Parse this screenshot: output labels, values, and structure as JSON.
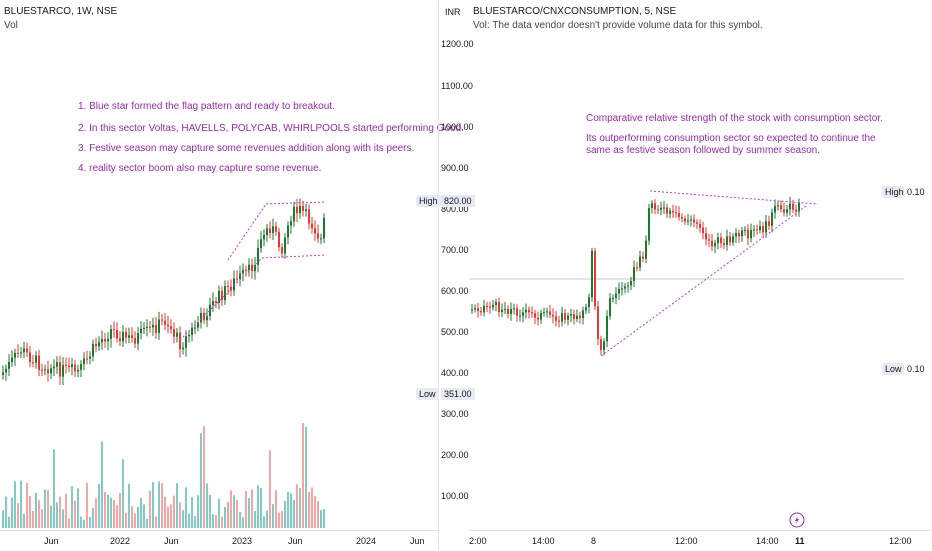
{
  "left": {
    "title": "BLUESTARCO, 1W, NSE",
    "vol_label": "Vol",
    "notes": [
      "1. Blue star formed the flag pattern and ready to breakout.",
      "2. In this sector Voltas, HAVELLS, POLYCAB, WHIRLPOOLS started performing Good.",
      "3. Festive season may capture some revenues addition along with its peers.",
      "4. reality sector boom also may capture some revenue."
    ],
    "currency": "INR",
    "price_ticks": [
      "1200.00",
      "1100.00",
      "1000.00",
      "900.00",
      "800.00",
      "700.00",
      "600.00",
      "500.00",
      "400.00",
      "300.00",
      "200.00",
      "100.00"
    ],
    "high_label": "High",
    "high_value": "820.00",
    "low_label": "Low",
    "low_value": "351.00",
    "x_ticks": [
      "Jun",
      "2022",
      "Jun",
      "2023",
      "Jun",
      "2024",
      "Jun"
    ]
  },
  "right": {
    "title": "BLUESTARCO/CNXCONSUMPTION, 5, NSE",
    "vol_note": "Vol: The data vendor doesn't provide volume data for this symbol.",
    "notes": [
      "Comparative relative strength of the stock with consumption sector.",
      "Its outperforming consumption sector so expected to continue the",
      "same as festive season followed by summer season."
    ],
    "high_label": "High",
    "high_value": "0.10",
    "low_label": "Low",
    "low_value": "0.10",
    "x_ticks": [
      "2:00",
      "14:00",
      "8",
      "12:00",
      "14:00",
      "11",
      "12:00"
    ]
  },
  "colors": {
    "up": "#26a69a",
    "down": "#ef5350",
    "annotation": "#c738d8",
    "up_green": "#1b7a2c",
    "down_red": "#e53935"
  }
}
